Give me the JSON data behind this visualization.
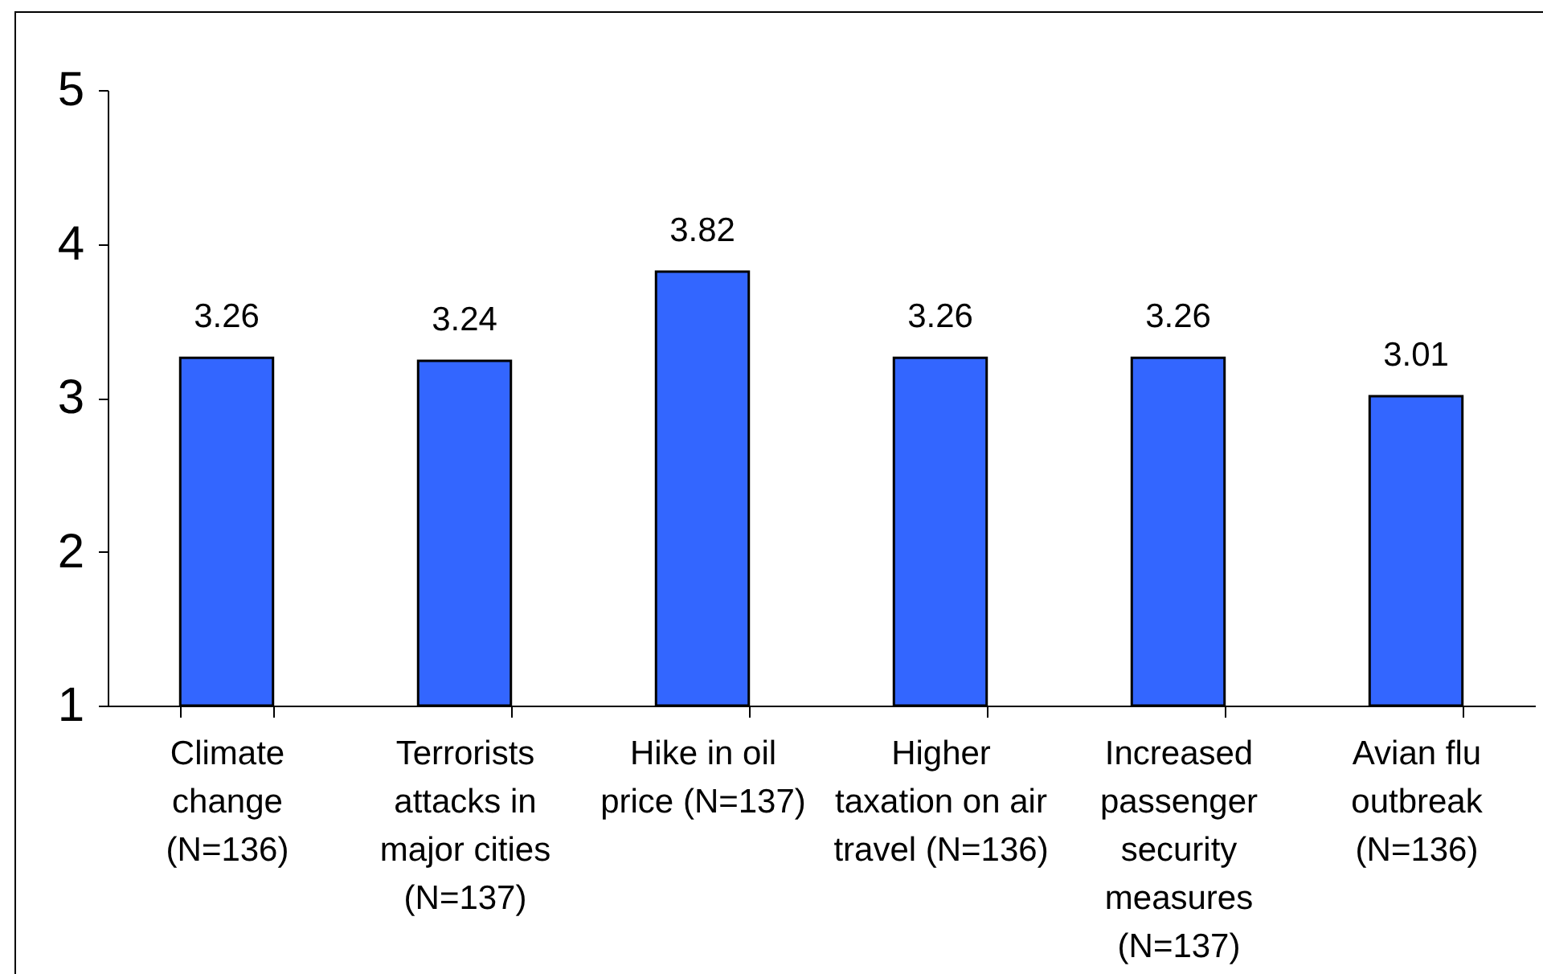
{
  "chart_data": {
    "type": "bar",
    "categories": [
      "Climate change (N=136)",
      "Terrorists attacks in major cities (N=137)",
      "Hike in oil price (N=137)",
      "Higher taxation on air travel (N=136)",
      "Increased passenger security measures (N=137)",
      "Avian flu outbreak (N=136)"
    ],
    "values": [
      3.26,
      3.24,
      3.82,
      3.26,
      3.26,
      3.01
    ],
    "color": "#3366ff",
    "ylim": [
      1,
      5
    ],
    "yticks": [
      1,
      2,
      3,
      4,
      5
    ],
    "data_labels": true
  }
}
